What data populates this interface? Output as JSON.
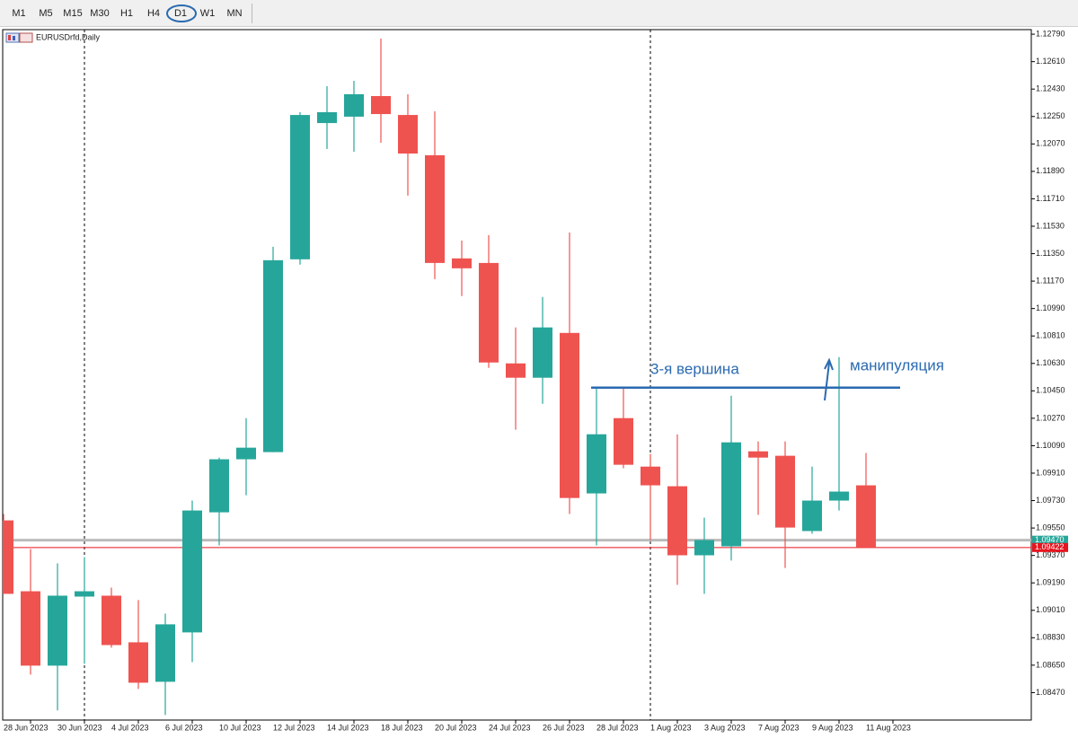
{
  "toolbar": {
    "timeframes": [
      "M1",
      "M5",
      "M15",
      "M30",
      "H1",
      "H4",
      "D1",
      "W1",
      "MN"
    ]
  },
  "chart_data": {
    "type": "candlestick",
    "title": "EURUSDrfd,Daily",
    "categories": [
      null,
      "28 Jun 2023",
      null,
      "30 Jun 2023",
      null,
      "4 Jul 2023",
      null,
      "6 Jul 2023",
      null,
      "10 Jul 2023",
      null,
      "12 Jul 2023",
      null,
      "14 Jul 2023",
      null,
      "18 Jul 2023",
      null,
      "20 Jul 2023",
      null,
      "24 Jul 2023",
      null,
      "26 Jul 2023",
      null,
      "28 Jul 2023",
      null,
      "1 Aug 2023",
      null,
      "3 Aug 2023",
      null,
      "7 Aug 2023",
      null,
      "9 Aug 2023",
      null,
      "11 Aug 2023"
    ],
    "open": [
      1.096,
      1.09135,
      1.08647,
      1.091,
      1.09106,
      1.088,
      1.08541,
      1.08865,
      1.09653,
      1.10001,
      1.10048,
      1.11313,
      1.12207,
      1.12249,
      1.12384,
      1.1226,
      1.11996,
      1.11319,
      1.11289,
      1.1063,
      1.10536,
      1.1083,
      1.09777,
      1.10271,
      1.09953,
      1.09824,
      1.09371,
      1.0943,
      1.10053,
      1.10024,
      1.0953,
      1.0973,
      1.0983,
      null
    ],
    "high": [
      1.09642,
      1.09412,
      1.09318,
      1.09359,
      1.09159,
      1.09077,
      1.08988,
      1.0973,
      1.10012,
      1.10271,
      1.11395,
      1.12278,
      1.12449,
      1.12484,
      1.12761,
      1.12396,
      1.12284,
      1.11436,
      1.11472,
      1.10866,
      1.11066,
      1.11489,
      1.10471,
      1.10471,
      1.10036,
      1.10165,
      1.09618,
      1.10418,
      1.10118,
      1.10118,
      1.09953,
      1.10671,
      1.10042,
      null
    ],
    "low": [
      1.09118,
      1.08588,
      1.08353,
      1.08659,
      1.08765,
      1.08494,
      1.08323,
      1.0867,
      1.09436,
      1.09765,
      1.10048,
      1.11278,
      1.12037,
      1.12019,
      1.12078,
      1.11731,
      1.11183,
      1.11072,
      1.10601,
      1.10195,
      1.10365,
      1.09642,
      1.09436,
      1.09942,
      1.09471,
      1.09177,
      1.09118,
      1.09336,
      1.09636,
      1.09288,
      1.09512,
      1.09665,
      1.09436,
      null
    ],
    "close": [
      1.09118,
      1.08647,
      1.09106,
      1.09135,
      1.08782,
      1.08535,
      1.08918,
      1.09665,
      1.10001,
      1.10077,
      1.11307,
      1.1226,
      1.12278,
      1.12396,
      1.12266,
      1.12007,
      1.11289,
      1.11254,
      1.10636,
      1.10536,
      1.10866,
      1.09747,
      1.10165,
      1.09965,
      1.0983,
      1.09371,
      1.09471,
      1.10112,
      1.10012,
      1.09553,
      1.0973,
      1.09789,
      1.09422,
      null
    ],
    "up_color": "#26a69a",
    "down_color": "#ef5350",
    "ylim": [
      1.0829,
      1.1282
    ],
    "yticks": [
      {
        "value": 1.1279,
        "label": "1.12790"
      },
      {
        "value": 1.1261,
        "label": "1.12610"
      },
      {
        "value": 1.1243,
        "label": "1.12430"
      },
      {
        "value": 1.1225,
        "label": "1.12250"
      },
      {
        "value": 1.1207,
        "label": "1.12070"
      },
      {
        "value": 1.1189,
        "label": "1.11890"
      },
      {
        "value": 1.1171,
        "label": "1.11710"
      },
      {
        "value": 1.1153,
        "label": "1.11530"
      },
      {
        "value": 1.1135,
        "label": "1.11350"
      },
      {
        "value": 1.1117,
        "label": "1.11170"
      },
      {
        "value": 1.1099,
        "label": "1.10990"
      },
      {
        "value": 1.1081,
        "label": "1.10810"
      },
      {
        "value": 1.1063,
        "label": "1.10630"
      },
      {
        "value": 1.1045,
        "label": "1.10450"
      },
      {
        "value": 1.1027,
        "label": "1.10270"
      },
      {
        "value": 1.1009,
        "label": "1.10090"
      },
      {
        "value": 1.0991,
        "label": "1.09910"
      },
      {
        "value": 1.0973,
        "label": "1.09730"
      },
      {
        "value": 1.0955,
        "label": "1.09550"
      },
      {
        "value": 1.0937,
        "label": "1.09370"
      },
      {
        "value": 1.0919,
        "label": "1.09190"
      },
      {
        "value": 1.0901,
        "label": "1.09010"
      },
      {
        "value": 1.0883,
        "label": "1.08830"
      },
      {
        "value": 1.0865,
        "label": "1.08650"
      },
      {
        "value": 1.0847,
        "label": "1.08470"
      }
    ],
    "price_lines": [
      {
        "value": 1.0947,
        "label": "1.09470",
        "color": "#26a69a"
      },
      {
        "value": 1.09422,
        "label": "1.09422",
        "color": "#e8141e"
      }
    ],
    "level": 1.10471,
    "annotations": [
      "3-я вершина",
      "манипуляция"
    ]
  }
}
